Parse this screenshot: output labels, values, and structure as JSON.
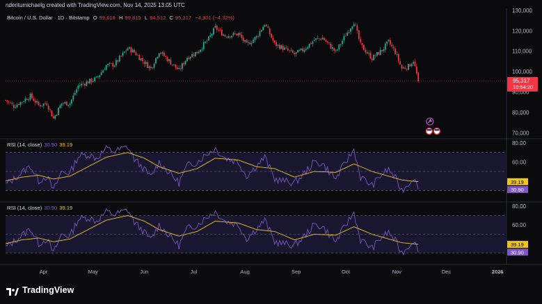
{
  "header": {
    "attribution": "nderitumichaelg created with TradingView.com, Nov 14, 2025 13:05 UTC"
  },
  "symbol": {
    "name": "Bitcoin / U.S. Dollar · 1D · Bitstamp",
    "o_label": "O",
    "o_value": "99,618",
    "h_label": "H",
    "h_value": "99,815",
    "l_label": "L",
    "l_value": "94,512",
    "c_label": "C",
    "c_value": "95,317",
    "change": "−4,301 (−4.32%)"
  },
  "price_tag": {
    "value": "95,317",
    "countdown": "10:54:20"
  },
  "rsi_panels": [
    {
      "title": "RSI (14, close)",
      "rsi_value": "30.90",
      "ma_value": "39.19"
    },
    {
      "title": "RSI (14, close)",
      "rsi_value": "30.90",
      "ma_value": "39.19"
    }
  ],
  "footer": {
    "brand": "TradingView"
  },
  "colors": {
    "background": "#0b0b0e",
    "up": "#22ab94",
    "down": "#f23645",
    "rsi_line": "#7e57c2",
    "rsi_ma": "#f0c419",
    "rsi_band": "#1a1730"
  },
  "chart_data": [
    {
      "type": "candlestick",
      "title": "Bitcoin / U.S. Dollar · 1D · Bitstamp",
      "ylim": [
        65000,
        131000
      ],
      "y_ticks": [
        "130,000",
        "120,000",
        "110,000",
        "100,000",
        "90,000",
        "80,000",
        "70,000"
      ],
      "x_ticks": [
        "Apr",
        "May",
        "Jun",
        "Jul",
        "Aug",
        "Sep",
        "Oct",
        "Nov",
        "Dec",
        "2026"
      ],
      "x_range": [
        "2025-03-09",
        "2026-01-06"
      ],
      "close_anchors": [
        [
          "2025-03-09",
          86000
        ],
        [
          "2025-03-14",
          83000
        ],
        [
          "2025-03-19",
          85500
        ],
        [
          "2025-03-24",
          88000
        ],
        [
          "2025-03-29",
          83500
        ],
        [
          "2025-04-03",
          84500
        ],
        [
          "2025-04-07",
          77000
        ],
        [
          "2025-04-12",
          84500
        ],
        [
          "2025-04-17",
          84500
        ],
        [
          "2025-04-22",
          93000
        ],
        [
          "2025-04-28",
          95000
        ],
        [
          "2025-05-03",
          96500
        ],
        [
          "2025-05-09",
          103000
        ],
        [
          "2025-05-14",
          103500
        ],
        [
          "2025-05-22",
          111500
        ],
        [
          "2025-05-26",
          109500
        ],
        [
          "2025-06-01",
          104500
        ],
        [
          "2025-06-05",
          101500
        ],
        [
          "2025-06-10",
          110000
        ],
        [
          "2025-06-17",
          104500
        ],
        [
          "2025-06-22",
          100500
        ],
        [
          "2025-06-27",
          107000
        ],
        [
          "2025-07-03",
          109500
        ],
        [
          "2025-07-10",
          116000
        ],
        [
          "2025-07-14",
          121500
        ],
        [
          "2025-07-20",
          117500
        ],
        [
          "2025-07-28",
          118500
        ],
        [
          "2025-08-02",
          113000
        ],
        [
          "2025-08-08",
          117000
        ],
        [
          "2025-08-13",
          123500
        ],
        [
          "2025-08-19",
          113500
        ],
        [
          "2025-08-24",
          111500
        ],
        [
          "2025-08-31",
          108500
        ],
        [
          "2025-09-05",
          110500
        ],
        [
          "2025-09-12",
          115500
        ],
        [
          "2025-09-17",
          116500
        ],
        [
          "2025-09-25",
          109500
        ],
        [
          "2025-10-01",
          118000
        ],
        [
          "2025-10-06",
          124500
        ],
        [
          "2025-10-10",
          113000
        ],
        [
          "2025-10-17",
          106500
        ],
        [
          "2025-10-23",
          110500
        ],
        [
          "2025-10-27",
          114500
        ],
        [
          "2025-10-31",
          109500
        ],
        [
          "2025-11-04",
          101500
        ],
        [
          "2025-11-08",
          102500
        ],
        [
          "2025-11-11",
          105500
        ],
        [
          "2025-11-14",
          95317
        ]
      ],
      "last_candle": {
        "open": 99618,
        "high": 99815,
        "low": 94512,
        "close": 95317
      }
    },
    {
      "type": "line",
      "title": "RSI (14, close)",
      "ylim": [
        20,
        80
      ],
      "y_ticks": [
        "80.00",
        "60.00"
      ],
      "bands": [
        70,
        30
      ],
      "series": [
        {
          "name": "RSI",
          "anchors": [
            [
              "2025-03-09",
              36
            ],
            [
              "2025-03-14",
              42
            ],
            [
              "2025-03-19",
              49
            ],
            [
              "2025-03-24",
              56
            ],
            [
              "2025-03-29",
              40
            ],
            [
              "2025-04-03",
              45
            ],
            [
              "2025-04-07",
              30
            ],
            [
              "2025-04-12",
              50
            ],
            [
              "2025-04-17",
              48
            ],
            [
              "2025-04-22",
              66
            ],
            [
              "2025-04-28",
              68
            ],
            [
              "2025-05-03",
              64
            ],
            [
              "2025-05-09",
              74
            ],
            [
              "2025-05-14",
              71
            ],
            [
              "2025-05-22",
              76
            ],
            [
              "2025-05-26",
              63
            ],
            [
              "2025-06-01",
              52
            ],
            [
              "2025-06-05",
              44
            ],
            [
              "2025-06-10",
              60
            ],
            [
              "2025-06-17",
              47
            ],
            [
              "2025-06-22",
              38
            ],
            [
              "2025-06-27",
              56
            ],
            [
              "2025-07-03",
              60
            ],
            [
              "2025-07-10",
              70
            ],
            [
              "2025-07-14",
              74
            ],
            [
              "2025-07-20",
              64
            ],
            [
              "2025-07-28",
              60
            ],
            [
              "2025-08-02",
              45
            ],
            [
              "2025-08-08",
              56
            ],
            [
              "2025-08-13",
              65
            ],
            [
              "2025-08-19",
              42
            ],
            [
              "2025-08-24",
              40
            ],
            [
              "2025-08-31",
              38
            ],
            [
              "2025-09-05",
              46
            ],
            [
              "2025-09-12",
              60
            ],
            [
              "2025-09-17",
              58
            ],
            [
              "2025-09-25",
              42
            ],
            [
              "2025-10-01",
              60
            ],
            [
              "2025-10-06",
              73
            ],
            [
              "2025-10-10",
              44
            ],
            [
              "2025-10-17",
              35
            ],
            [
              "2025-10-23",
              47
            ],
            [
              "2025-10-27",
              52
            ],
            [
              "2025-10-31",
              43
            ],
            [
              "2025-11-04",
              30
            ],
            [
              "2025-11-08",
              37
            ],
            [
              "2025-11-11",
              44
            ],
            [
              "2025-11-14",
              30.9
            ]
          ]
        },
        {
          "name": "RSI-based MA",
          "anchors": [
            [
              "2025-03-09",
              40
            ],
            [
              "2025-03-19",
              44
            ],
            [
              "2025-03-29",
              46
            ],
            [
              "2025-04-07",
              42
            ],
            [
              "2025-04-17",
              45
            ],
            [
              "2025-04-28",
              55
            ],
            [
              "2025-05-09",
              65
            ],
            [
              "2025-05-22",
              70
            ],
            [
              "2025-06-01",
              64
            ],
            [
              "2025-06-10",
              55
            ],
            [
              "2025-06-22",
              48
            ],
            [
              "2025-07-03",
              53
            ],
            [
              "2025-07-14",
              64
            ],
            [
              "2025-07-28",
              62
            ],
            [
              "2025-08-08",
              55
            ],
            [
              "2025-08-19",
              53
            ],
            [
              "2025-08-31",
              44
            ],
            [
              "2025-09-12",
              50
            ],
            [
              "2025-09-25",
              49
            ],
            [
              "2025-10-06",
              58
            ],
            [
              "2025-10-17",
              50
            ],
            [
              "2025-10-27",
              45
            ],
            [
              "2025-11-04",
              41
            ],
            [
              "2025-11-14",
              39.19
            ]
          ]
        }
      ]
    },
    {
      "type": "line",
      "title": "RSI (14, close)",
      "ylim": [
        20,
        80
      ],
      "y_ticks": [
        "80.00",
        "60.00"
      ],
      "bands": [
        70,
        30
      ],
      "series_ref": "same as RSI panel 1"
    }
  ]
}
